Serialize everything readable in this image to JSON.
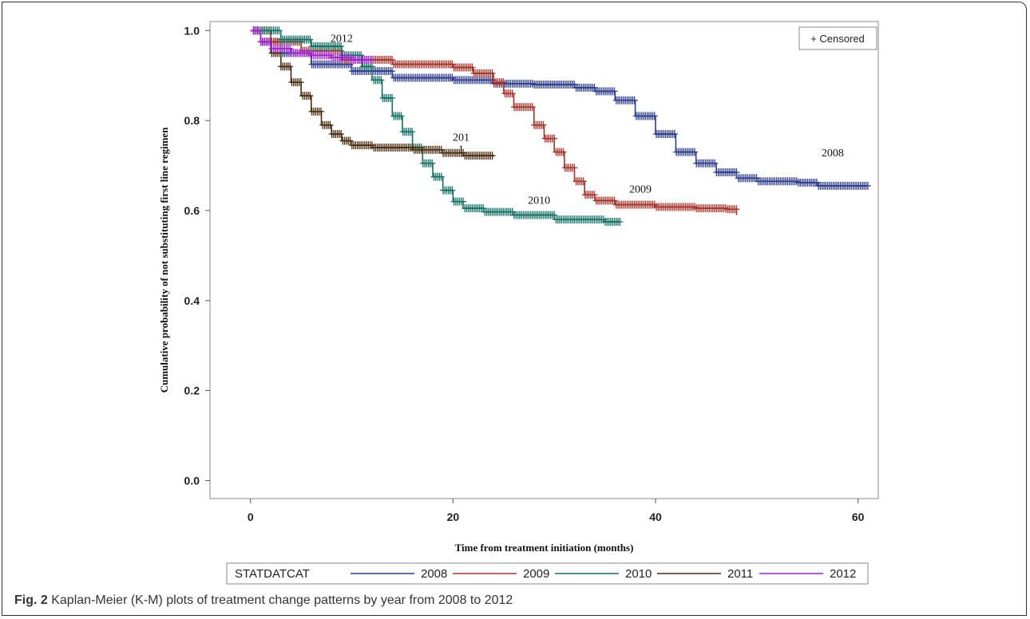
{
  "figure": {
    "caption_label": "Fig. 2",
    "caption_text": "Kaplan-Meier (K-M) plots of treatment change patterns by year from 2008 to 2012"
  },
  "chart_data": {
    "type": "line",
    "xlabel": "Time from treatment initiation (months)",
    "ylabel": "Cumulative probability of not substituting first line regimen",
    "xlim": [
      -4,
      62
    ],
    "ylim": [
      -0.04,
      1.02
    ],
    "xticks": [
      "0",
      "20",
      "40",
      "60"
    ],
    "yticks": [
      "0.0",
      "0.2",
      "0.4",
      "0.6",
      "0.8",
      "1.0"
    ],
    "legend_inset": "+ Censored",
    "legend_title": "STATDATCAT",
    "legend_position": "bottom",
    "grid": false,
    "series": [
      {
        "name": "2008",
        "color": "#2e3d8f",
        "label": "2008",
        "label_at": [
          57.5,
          0.72
        ],
        "points": [
          [
            0,
            1.0
          ],
          [
            1,
            0.975
          ],
          [
            3,
            0.95
          ],
          [
            6,
            0.925
          ],
          [
            10,
            0.91
          ],
          [
            14,
            0.895
          ],
          [
            20,
            0.89
          ],
          [
            24,
            0.882
          ],
          [
            28,
            0.88
          ],
          [
            32,
            0.873
          ],
          [
            34,
            0.865
          ],
          [
            36,
            0.845
          ],
          [
            38,
            0.81
          ],
          [
            40,
            0.77
          ],
          [
            42,
            0.73
          ],
          [
            44,
            0.705
          ],
          [
            46,
            0.685
          ],
          [
            48,
            0.672
          ],
          [
            50,
            0.665
          ],
          [
            54,
            0.662
          ],
          [
            56,
            0.655
          ],
          [
            61,
            0.655
          ]
        ]
      },
      {
        "name": "2009",
        "color": "#a83228",
        "label": "2009",
        "label_at": [
          38.5,
          0.64
        ],
        "points": [
          [
            0,
            1.0
          ],
          [
            2,
            0.975
          ],
          [
            5,
            0.955
          ],
          [
            9,
            0.935
          ],
          [
            14,
            0.925
          ],
          [
            20,
            0.918
          ],
          [
            22,
            0.905
          ],
          [
            24,
            0.885
          ],
          [
            25,
            0.86
          ],
          [
            26,
            0.83
          ],
          [
            28,
            0.79
          ],
          [
            29,
            0.76
          ],
          [
            30,
            0.73
          ],
          [
            31,
            0.695
          ],
          [
            32,
            0.665
          ],
          [
            33,
            0.635
          ],
          [
            34,
            0.622
          ],
          [
            36,
            0.613
          ],
          [
            40,
            0.608
          ],
          [
            44,
            0.605
          ],
          [
            47,
            0.603
          ],
          [
            48,
            0.59
          ]
        ]
      },
      {
        "name": "2010",
        "color": "#137064",
        "label": "2010",
        "label_at": [
          28.5,
          0.615
        ],
        "points": [
          [
            0,
            1.0
          ],
          [
            3,
            0.98
          ],
          [
            6,
            0.965
          ],
          [
            9,
            0.945
          ],
          [
            11,
            0.92
          ],
          [
            12,
            0.89
          ],
          [
            13,
            0.85
          ],
          [
            14,
            0.81
          ],
          [
            15,
            0.775
          ],
          [
            16,
            0.74
          ],
          [
            17,
            0.705
          ],
          [
            18,
            0.675
          ],
          [
            19,
            0.645
          ],
          [
            20,
            0.62
          ],
          [
            21,
            0.605
          ],
          [
            23,
            0.597
          ],
          [
            26,
            0.59
          ],
          [
            30,
            0.58
          ],
          [
            35,
            0.575
          ],
          [
            36.5,
            0.575
          ]
        ]
      },
      {
        "name": "2011",
        "color": "#4a2c10",
        "label": "201\n1",
        "label_at": [
          20.8,
          0.755
        ],
        "points": [
          [
            0,
            1.0
          ],
          [
            1,
            0.975
          ],
          [
            2,
            0.95
          ],
          [
            3,
            0.92
          ],
          [
            4,
            0.885
          ],
          [
            5,
            0.855
          ],
          [
            6,
            0.82
          ],
          [
            7,
            0.79
          ],
          [
            8,
            0.77
          ],
          [
            9,
            0.755
          ],
          [
            10,
            0.745
          ],
          [
            12,
            0.74
          ],
          [
            16,
            0.735
          ],
          [
            19,
            0.728
          ],
          [
            21,
            0.722
          ],
          [
            24,
            0.72
          ]
        ]
      },
      {
        "name": "2012",
        "color": "#a020d0",
        "label": "2012",
        "label_at": [
          9.0,
          0.975
        ],
        "points": [
          [
            0,
            1.0
          ],
          [
            1,
            0.975
          ],
          [
            2,
            0.96
          ],
          [
            4,
            0.95
          ],
          [
            6,
            0.945
          ],
          [
            8,
            0.94
          ],
          [
            10,
            0.935
          ],
          [
            12,
            0.935
          ]
        ]
      }
    ]
  }
}
